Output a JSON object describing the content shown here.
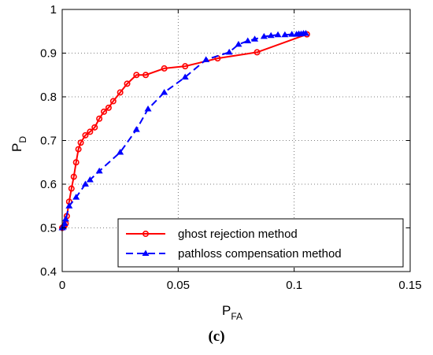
{
  "panel_label": "(c)",
  "chart_data": {
    "type": "line",
    "xlabel": "P",
    "xlabel_sub": "FA",
    "ylabel": "P",
    "ylabel_sub": "D",
    "xlim": [
      0,
      0.15
    ],
    "ylim": [
      0.4,
      1.0
    ],
    "xticks": [
      0,
      0.05,
      0.1,
      0.15
    ],
    "xtick_labels": [
      "0",
      "0.05",
      "0.1",
      "0.15"
    ],
    "yticks": [
      0.4,
      0.5,
      0.6,
      0.7,
      0.8,
      0.9,
      1.0
    ],
    "ytick_labels": [
      "0.4",
      "0.5",
      "0.6",
      "0.7",
      "0.8",
      "0.9",
      "1"
    ],
    "grid": true,
    "legend_position": "bottom-right",
    "series": [
      {
        "name": "ghost rejection method",
        "color": "#ff0000",
        "line_style": "solid",
        "marker": "circle",
        "x": [
          0,
          0.0005,
          0.001,
          0.0015,
          0.002,
          0.003,
          0.004,
          0.005,
          0.006,
          0.007,
          0.008,
          0.01,
          0.012,
          0.014,
          0.016,
          0.018,
          0.02,
          0.022,
          0.025,
          0.028,
          0.032,
          0.036,
          0.044,
          0.053,
          0.067,
          0.084,
          0.1055
        ],
        "y": [
          0.5,
          0.502,
          0.505,
          0.51,
          0.527,
          0.56,
          0.59,
          0.617,
          0.65,
          0.68,
          0.695,
          0.712,
          0.72,
          0.73,
          0.75,
          0.766,
          0.775,
          0.79,
          0.81,
          0.83,
          0.85,
          0.85,
          0.865,
          0.87,
          0.888,
          0.902,
          0.943
        ]
      },
      {
        "name": "pathloss compensation method",
        "color": "#0000ff",
        "line_style": "dashed",
        "marker": "triangle",
        "x": [
          0,
          0.0005,
          0.001,
          0.0015,
          0.003,
          0.006,
          0.01,
          0.012,
          0.016,
          0.025,
          0.032,
          0.037,
          0.044,
          0.053,
          0.062,
          0.072,
          0.076,
          0.08,
          0.083,
          0.087,
          0.09,
          0.093,
          0.096,
          0.099,
          0.101,
          0.102,
          0.103,
          0.104,
          0.105
        ],
        "y": [
          0.5,
          0.502,
          0.51,
          0.52,
          0.55,
          0.57,
          0.6,
          0.61,
          0.63,
          0.673,
          0.725,
          0.772,
          0.81,
          0.845,
          0.885,
          0.902,
          0.92,
          0.928,
          0.932,
          0.938,
          0.94,
          0.942,
          0.942,
          0.943,
          0.943,
          0.944,
          0.944,
          0.945,
          0.945
        ]
      }
    ]
  }
}
